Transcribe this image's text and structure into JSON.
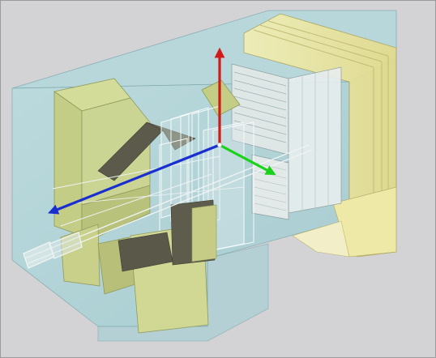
{
  "scene": {
    "description_kind": "3d-detector-geometry-render",
    "background_color": "#d3d3d5",
    "colors": {
      "envelope_fill": "#a8d2d6",
      "envelope_edge": "#6a9aa0",
      "module_fill": "#c7d28a",
      "module_edge": "#8f9a5a",
      "module_dark": "#5b5a4a",
      "wire_light": "#f2f6f6",
      "calorimeter_yellow": "#eae49a",
      "axis_x": "#d11a1a",
      "axis_y": "#1a2fd0",
      "axis_z": "#1bd21b"
    },
    "axes": [
      {
        "name": "x-axis",
        "color": "#d11a1a"
      },
      {
        "name": "y-axis",
        "color": "#1a2fd0"
      },
      {
        "name": "z-axis",
        "color": "#1bd21b"
      }
    ]
  }
}
